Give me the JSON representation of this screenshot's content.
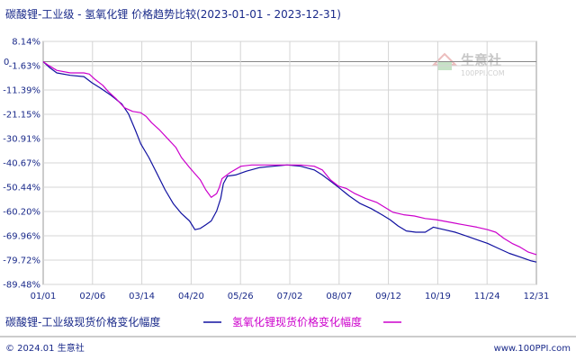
{
  "chart_data": {
    "type": "line",
    "title": "碳酸锂-工业级 - 氢氧化锂 价格趋势比较(2023-01-01 - 2023-12-31)",
    "xlabel": "",
    "ylabel": "",
    "x_ticks": [
      "01/01",
      "02/06",
      "03/14",
      "04/20",
      "05/26",
      "07/02",
      "08/07",
      "09/12",
      "10/19",
      "11/24",
      "12/31"
    ],
    "y_ticks": [
      "8.14%",
      "0",
      "-1.63%",
      "-11.39%",
      "-21.15%",
      "-30.91%",
      "-40.67%",
      "-50.44%",
      "-60.20%",
      "-69.96%",
      "-79.72%",
      "-89.48%"
    ],
    "ylim": [
      -89.48,
      8.14
    ],
    "xlim_days": [
      0,
      364
    ],
    "grid": true,
    "legend_position": "bottom",
    "series": [
      {
        "name": "碳酸锂-工业级现货价格变化幅度",
        "color": "#1010a0",
        "points": [
          [
            0,
            0
          ],
          [
            5,
            -2.5
          ],
          [
            10,
            -4.5
          ],
          [
            20,
            -5.5
          ],
          [
            30,
            -6.0
          ],
          [
            36,
            -8.5
          ],
          [
            42,
            -10.5
          ],
          [
            50,
            -13.5
          ],
          [
            58,
            -17.0
          ],
          [
            63,
            -21.0
          ],
          [
            68,
            -27.5
          ],
          [
            72,
            -33.0
          ],
          [
            78,
            -38.5
          ],
          [
            84,
            -45.0
          ],
          [
            90,
            -51.5
          ],
          [
            96,
            -57.0
          ],
          [
            102,
            -61.0
          ],
          [
            108,
            -64.0
          ],
          [
            112,
            -67.5
          ],
          [
            116,
            -67.0
          ],
          [
            120,
            -65.5
          ],
          [
            124,
            -64.0
          ],
          [
            128,
            -60.0
          ],
          [
            131,
            -55.0
          ],
          [
            133,
            -49.0
          ],
          [
            136,
            -46.0
          ],
          [
            142,
            -45.5
          ],
          [
            150,
            -44.0
          ],
          [
            160,
            -42.5
          ],
          [
            170,
            -42.0
          ],
          [
            180,
            -41.5
          ],
          [
            190,
            -42.0
          ],
          [
            200,
            -43.5
          ],
          [
            206,
            -45.5
          ],
          [
            212,
            -48.0
          ],
          [
            218,
            -50.5
          ],
          [
            226,
            -54.0
          ],
          [
            234,
            -57.0
          ],
          [
            242,
            -59.0
          ],
          [
            250,
            -61.5
          ],
          [
            256,
            -63.5
          ],
          [
            262,
            -66.0
          ],
          [
            268,
            -68.0
          ],
          [
            275,
            -68.5
          ],
          [
            282,
            -68.5
          ],
          [
            288,
            -66.5
          ],
          [
            296,
            -67.5
          ],
          [
            304,
            -68.5
          ],
          [
            312,
            -70.0
          ],
          [
            320,
            -71.5
          ],
          [
            328,
            -73.0
          ],
          [
            336,
            -75.0
          ],
          [
            344,
            -77.0
          ],
          [
            352,
            -78.5
          ],
          [
            360,
            -80.0
          ],
          [
            364,
            -80.5
          ]
        ]
      },
      {
        "name": "氢氧化锂现货价格变化幅度",
        "color": "#cc00cc",
        "points": [
          [
            0,
            0
          ],
          [
            4,
            -1.5
          ],
          [
            10,
            -3.5
          ],
          [
            20,
            -4.5
          ],
          [
            30,
            -4.5
          ],
          [
            34,
            -5.0
          ],
          [
            38,
            -7.0
          ],
          [
            44,
            -9.5
          ],
          [
            48,
            -12.0
          ],
          [
            54,
            -15.0
          ],
          [
            60,
            -18.5
          ],
          [
            66,
            -20.0
          ],
          [
            72,
            -20.5
          ],
          [
            76,
            -22.0
          ],
          [
            80,
            -24.5
          ],
          [
            86,
            -27.5
          ],
          [
            92,
            -31.0
          ],
          [
            98,
            -34.5
          ],
          [
            102,
            -38.5
          ],
          [
            108,
            -42.5
          ],
          [
            112,
            -45.0
          ],
          [
            116,
            -47.5
          ],
          [
            120,
            -51.5
          ],
          [
            124,
            -54.5
          ],
          [
            128,
            -53.0
          ],
          [
            130,
            -50.5
          ],
          [
            132,
            -47.0
          ],
          [
            138,
            -44.5
          ],
          [
            146,
            -42.0
          ],
          [
            154,
            -41.5
          ],
          [
            165,
            -41.5
          ],
          [
            178,
            -41.5
          ],
          [
            190,
            -41.5
          ],
          [
            200,
            -42.0
          ],
          [
            206,
            -43.5
          ],
          [
            212,
            -47.5
          ],
          [
            218,
            -50.0
          ],
          [
            224,
            -51.0
          ],
          [
            230,
            -53.0
          ],
          [
            238,
            -55.0
          ],
          [
            246,
            -56.5
          ],
          [
            252,
            -58.5
          ],
          [
            258,
            -60.5
          ],
          [
            266,
            -61.5
          ],
          [
            274,
            -62.0
          ],
          [
            282,
            -63.0
          ],
          [
            290,
            -63.5
          ],
          [
            300,
            -64.5
          ],
          [
            310,
            -65.5
          ],
          [
            320,
            -66.5
          ],
          [
            328,
            -67.5
          ],
          [
            334,
            -68.5
          ],
          [
            340,
            -71.0
          ],
          [
            346,
            -73.0
          ],
          [
            352,
            -74.5
          ],
          [
            358,
            -76.5
          ],
          [
            364,
            -77.5
          ]
        ]
      }
    ]
  },
  "legend": {
    "series1": "碳酸锂-工业级现货价格变化幅度",
    "series2": "氢氧化锂现货价格变化幅度"
  },
  "footer": {
    "copyright": "© 2024.01 生意社",
    "website": "www.100PPI.com"
  },
  "watermark": {
    "name": "生意社",
    "url": "100PPI.COM"
  }
}
